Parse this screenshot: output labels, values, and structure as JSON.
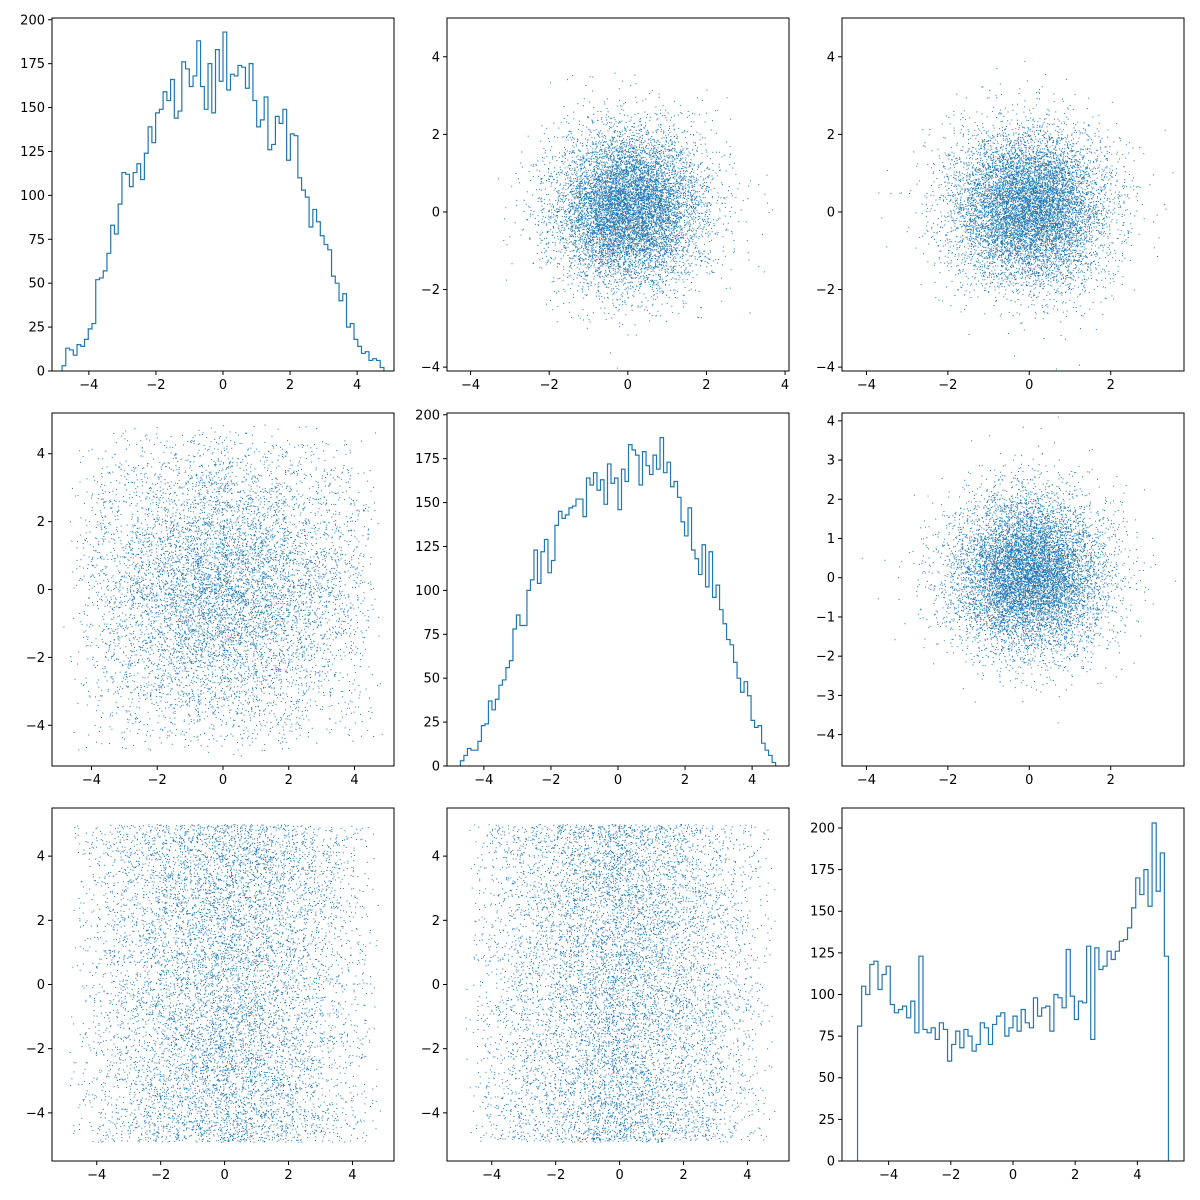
{
  "figure": {
    "rows": 3,
    "cols": 3,
    "background": "#ffffff"
  },
  "colors": {
    "series": "#1f77b4",
    "axes": "#000000"
  },
  "chart_data": [
    {
      "type": "histogram",
      "id": "p00",
      "xlim": [
        -5.1,
        5.1
      ],
      "ylim": [
        0,
        201
      ],
      "xticks": [
        -4,
        -2,
        0,
        2,
        4
      ],
      "xtick_labels": [
        "−4",
        "−2",
        "0",
        "2",
        "4"
      ],
      "yticks": [
        0,
        25,
        50,
        75,
        100,
        125,
        150,
        175,
        200
      ],
      "ytick_labels": [
        "0",
        "25",
        "50",
        "75",
        "100",
        "125",
        "150",
        "175",
        "200"
      ],
      "bins": [
        -4.8,
        4.8
      ],
      "counts": [
        3,
        13,
        12,
        9,
        15,
        14,
        18,
        24,
        27,
        52,
        53,
        57,
        67,
        83,
        78,
        95,
        113,
        112,
        105,
        113,
        118,
        109,
        124,
        139,
        130,
        147,
        149,
        159,
        154,
        166,
        144,
        148,
        176,
        172,
        162,
        168,
        188,
        162,
        149,
        175,
        147,
        183,
        165,
        193,
        160,
        169,
        168,
        174,
        173,
        161,
        175,
        154,
        139,
        143,
        156,
        126,
        129,
        145,
        141,
        149,
        120,
        135,
        134,
        110,
        103,
        99,
        82,
        92,
        85,
        77,
        72,
        69,
        54,
        50,
        40,
        44,
        25,
        27,
        18,
        14,
        10,
        11,
        6,
        7,
        6,
        2
      ]
    },
    {
      "type": "scatter",
      "id": "p01",
      "sampler": "gaussian",
      "n": 9000,
      "xlim": [
        -4.6,
        4.1
      ],
      "ylim": [
        -4.1,
        5.0
      ],
      "xticks": [
        -4,
        -2,
        0,
        2,
        4
      ],
      "xtick_labels": [
        "−4",
        "−2",
        "0",
        "2",
        "4"
      ],
      "yticks": [
        -4,
        -2,
        0,
        2,
        4
      ],
      "ytick_labels": [
        "−4",
        "−2",
        "0",
        "2",
        "4"
      ],
      "center": [
        0,
        0.1
      ],
      "sigma": [
        0.95,
        1.0
      ]
    },
    {
      "type": "scatter",
      "id": "p02",
      "sampler": "gaussian",
      "n": 9000,
      "xlim": [
        -4.6,
        3.8
      ],
      "ylim": [
        -4.1,
        5.0
      ],
      "xticks": [
        -4,
        -2,
        0,
        2
      ],
      "xtick_labels": [
        "−4",
        "−2",
        "0",
        "2"
      ],
      "yticks": [
        -4,
        -2,
        0,
        2,
        4
      ],
      "ytick_labels": [
        "−4",
        "−2",
        "0",
        "2",
        "4"
      ],
      "center": [
        0,
        0.1
      ],
      "sigma": [
        0.95,
        1.0
      ]
    },
    {
      "type": "scatter",
      "id": "p10",
      "sampler": "triangular",
      "n": 8000,
      "xlim": [
        -5.2,
        5.2
      ],
      "ylim": [
        -5.2,
        5.2
      ],
      "xticks": [
        -4,
        -2,
        0,
        2,
        4
      ],
      "xtick_labels": [
        "−4",
        "−2",
        "0",
        "2",
        "4"
      ],
      "yticks": [
        -4,
        -2,
        0,
        2,
        4
      ],
      "ytick_labels": [
        "−4",
        "−2",
        "0",
        "2",
        "4"
      ],
      "half_width": 4.9
    },
    {
      "type": "histogram",
      "id": "p11",
      "xlim": [
        -5.1,
        5.1
      ],
      "ylim": [
        0,
        201
      ],
      "xticks": [
        -4,
        -2,
        0,
        2,
        4
      ],
      "xtick_labels": [
        "−4",
        "−2",
        "0",
        "2",
        "4"
      ],
      "yticks": [
        0,
        25,
        50,
        75,
        100,
        125,
        150,
        175,
        200
      ],
      "ytick_labels": [
        "0",
        "25",
        "50",
        "75",
        "100",
        "125",
        "150",
        "175",
        "200"
      ],
      "bins": [
        -4.7,
        4.7
      ],
      "counts": [
        3,
        6,
        10,
        9,
        9,
        14,
        23,
        24,
        37,
        32,
        38,
        46,
        49,
        56,
        60,
        78,
        86,
        80,
        80,
        100,
        106,
        123,
        104,
        122,
        129,
        110,
        117,
        137,
        145,
        141,
        143,
        147,
        148,
        152,
        152,
        142,
        164,
        160,
        167,
        157,
        163,
        149,
        172,
        161,
        164,
        146,
        169,
        162,
        183,
        180,
        177,
        160,
        179,
        171,
        166,
        177,
        169,
        187,
        167,
        173,
        159,
        162,
        153,
        139,
        131,
        147,
        123,
        118,
        109,
        126,
        102,
        122,
        96,
        103,
        89,
        81,
        72,
        69,
        59,
        50,
        42,
        48,
        40,
        26,
        22,
        23,
        13,
        9,
        6,
        2
      ]
    },
    {
      "type": "scatter",
      "id": "p12",
      "sampler": "gaussian",
      "n": 9000,
      "xlim": [
        -4.6,
        3.8
      ],
      "ylim": [
        -4.8,
        4.2
      ],
      "xticks": [
        -4,
        -2,
        0,
        2
      ],
      "xtick_labels": [
        "−4",
        "−2",
        "0",
        "2"
      ],
      "yticks": [
        -4,
        -3,
        -2,
        -1,
        0,
        1,
        2,
        3,
        4
      ],
      "ytick_labels": [
        "−4",
        "−3",
        "−2",
        "−1",
        "0",
        "1",
        "2",
        "3",
        "4"
      ],
      "center": [
        0,
        0.1
      ],
      "sigma": [
        0.95,
        1.0
      ]
    },
    {
      "type": "scatter",
      "id": "p20",
      "sampler": "uniform-ish",
      "n": 9000,
      "xlim": [
        -5.4,
        5.3
      ],
      "ylim": [
        -5.5,
        5.5
      ],
      "xticks": [
        -4,
        -2,
        0,
        2,
        4
      ],
      "xtick_labels": [
        "−4",
        "−2",
        "0",
        "2",
        "4"
      ],
      "yticks": [
        -4,
        -2,
        0,
        2,
        4
      ],
      "ytick_labels": [
        "−4",
        "−2",
        "0",
        "2",
        "4"
      ],
      "y_bounds": [
        -4.9,
        5.0
      ],
      "half_width": 4.9
    },
    {
      "type": "scatter",
      "id": "p21",
      "sampler": "uniform-ish",
      "n": 9000,
      "xlim": [
        -5.4,
        5.3
      ],
      "ylim": [
        -5.5,
        5.5
      ],
      "xticks": [
        -4,
        -2,
        0,
        2,
        4
      ],
      "xtick_labels": [
        "−4",
        "−2",
        "0",
        "2",
        "4"
      ],
      "yticks": [
        -4,
        -2,
        0,
        2,
        4
      ],
      "ytick_labels": [
        "−4",
        "−2",
        "0",
        "2",
        "4"
      ],
      "y_bounds": [
        -4.9,
        5.0
      ],
      "half_width": 4.9
    },
    {
      "type": "histogram",
      "id": "p22",
      "xlim": [
        -5.5,
        5.5
      ],
      "ylim": [
        0,
        212
      ],
      "xticks": [
        -4,
        -2,
        0,
        2,
        4
      ],
      "xtick_labels": [
        "−4",
        "−2",
        "0",
        "2",
        "4"
      ],
      "yticks": [
        0,
        25,
        50,
        75,
        100,
        125,
        150,
        175,
        200
      ],
      "ytick_labels": [
        "0",
        "25",
        "50",
        "75",
        "100",
        "125",
        "150",
        "175",
        "200"
      ],
      "bins": [
        -5.0,
        5.0
      ],
      "counts": [
        81,
        105,
        100,
        118,
        120,
        103,
        112,
        117,
        94,
        89,
        91,
        93,
        86,
        96,
        77,
        123,
        79,
        77,
        80,
        73,
        83,
        79,
        60,
        70,
        78,
        68,
        79,
        75,
        66,
        70,
        83,
        80,
        70,
        82,
        87,
        89,
        75,
        80,
        87,
        78,
        91,
        83,
        80,
        98,
        87,
        92,
        93,
        78,
        100,
        98,
        92,
        127,
        99,
        85,
        96,
        95,
        129,
        73,
        128,
        115,
        117,
        126,
        121,
        126,
        132,
        133,
        140,
        152,
        170,
        160,
        175,
        153,
        203,
        162,
        185,
        123
      ]
    }
  ]
}
